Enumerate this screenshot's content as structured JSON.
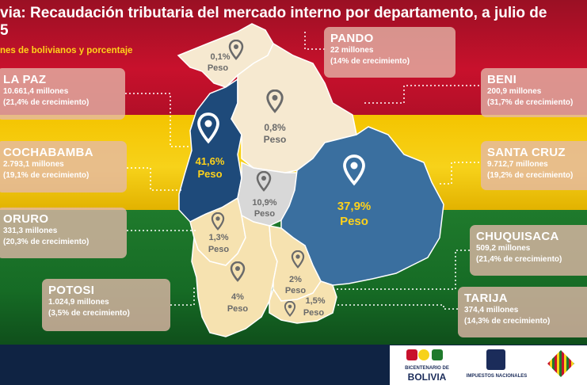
{
  "header": {
    "title_line1": "via: Recaudación tributaria del mercado interno por departamento, a julio de",
    "title_line2": "5",
    "subtitle": "nes de bolivianos y porcentaje"
  },
  "departments": [
    {
      "name": "PANDO",
      "amount": "22 millones",
      "growth": "(14% de crecimiento)",
      "share": "0,1%",
      "peso": "Peso"
    },
    {
      "name": "LA PAZ",
      "amount": "10.661,4 millones",
      "growth": "(21,4%  de crecimiento)",
      "share": "41,6%",
      "peso": "Peso"
    },
    {
      "name": "BENI",
      "amount": "200,9 millones",
      "growth": "(31,7% de crecimiento)",
      "share": "0,8%",
      "peso": "Peso"
    },
    {
      "name": "COCHABAMBA",
      "amount": "2.793,1 millones",
      "growth": "(19,1%  de crecimiento)",
      "share": "10,9%",
      "peso": "Peso"
    },
    {
      "name": "SANTA CRUZ",
      "amount": "9.712,7 millones",
      "growth": "(19,2%  de crecimiento)",
      "share": "37,9%",
      "peso": "Peso"
    },
    {
      "name": "ORURO",
      "amount": "331,3 millones",
      "growth": "(20,3%  de crecimiento)",
      "share": "1,3%",
      "peso": "Peso"
    },
    {
      "name": "CHUQUISACA",
      "amount": "509,2 millones",
      "growth": "(21,4%  de crecimiento)",
      "share": "2%",
      "peso": "Peso"
    },
    {
      "name": "POTOSI",
      "amount": "1.024,9 millones",
      "growth": "(3,5% de crecimiento)",
      "share": "4%",
      "peso": "Peso"
    },
    {
      "name": "TARIJA",
      "amount": "374,4 millones",
      "growth": "(14,3%  de crecimiento)",
      "share": "1,5%",
      "peso": "Peso"
    }
  ],
  "footer": {
    "bicentenario_small": "BICENTENARIO DE",
    "bicentenario_big": "BOLIVIA",
    "impuestos": "IMPUESTOS NACIONALES"
  },
  "colors": {
    "red": "#c8112c",
    "yellow": "#f7d21a",
    "green": "#1f7a2c",
    "navy": "#0f2343",
    "lapaz": "#1e4a7a",
    "santacruz": "#3a6f9f"
  }
}
